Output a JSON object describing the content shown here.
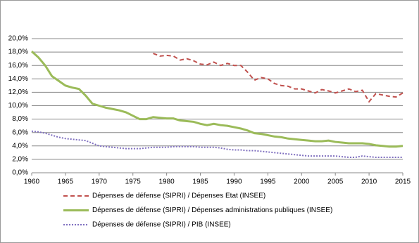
{
  "chart_data": {
    "type": "line",
    "x": [
      1960,
      1961,
      1962,
      1963,
      1964,
      1965,
      1966,
      1967,
      1968,
      1969,
      1970,
      1971,
      1972,
      1973,
      1974,
      1975,
      1976,
      1977,
      1978,
      1979,
      1980,
      1981,
      1982,
      1983,
      1984,
      1985,
      1986,
      1987,
      1988,
      1989,
      1990,
      1991,
      1992,
      1993,
      1994,
      1995,
      1996,
      1997,
      1998,
      1999,
      2000,
      2001,
      2002,
      2003,
      2004,
      2005,
      2006,
      2007,
      2008,
      2009,
      2010,
      2011,
      2012,
      2013,
      2014,
      2015
    ],
    "series": [
      {
        "name": "Dépenses de défense (SIPRI) / Dépenses Etat (INSEE)",
        "color": "#c0504d",
        "dash": "dashed",
        "values": [
          null,
          null,
          null,
          null,
          null,
          null,
          null,
          null,
          null,
          null,
          null,
          null,
          null,
          null,
          null,
          null,
          null,
          null,
          17.8,
          17.4,
          17.5,
          17.4,
          16.8,
          17.0,
          16.7,
          16.2,
          16.1,
          16.5,
          16.0,
          16.3,
          16.0,
          16.0,
          15.0,
          13.8,
          14.2,
          14.0,
          13.3,
          13.0,
          12.9,
          12.5,
          12.5,
          12.2,
          11.9,
          12.4,
          12.2,
          11.9,
          12.2,
          12.5,
          12.1,
          12.3,
          10.6,
          11.8,
          11.6,
          11.4,
          11.3,
          11.9
        ]
      },
      {
        "name": "Dépenses de défense (SIPRI) / Dépenses administrations publiques (INSEE)",
        "color": "#9bbb59",
        "dash": "solid",
        "values": [
          18.1,
          17.2,
          16.0,
          14.4,
          13.7,
          13.0,
          12.7,
          12.5,
          11.5,
          10.3,
          10.0,
          9.7,
          9.5,
          9.3,
          9.0,
          8.5,
          8.0,
          8.0,
          8.3,
          8.2,
          8.1,
          8.1,
          7.8,
          7.7,
          7.6,
          7.3,
          7.1,
          7.3,
          7.1,
          7.0,
          6.8,
          6.6,
          6.3,
          5.9,
          5.8,
          5.6,
          5.4,
          5.3,
          5.1,
          5.0,
          4.9,
          4.8,
          4.7,
          4.7,
          4.8,
          4.6,
          4.5,
          4.4,
          4.4,
          4.4,
          4.3,
          4.1,
          4.0,
          3.9,
          3.9,
          4.0
        ]
      },
      {
        "name": "Dépenses de défense (SIPRI) / PIB (INSEE)",
        "color": "#7f6fbf",
        "dash": "dotted",
        "values": [
          6.2,
          6.1,
          5.9,
          5.6,
          5.3,
          5.1,
          5.0,
          4.9,
          4.8,
          4.4,
          4.0,
          3.9,
          3.8,
          3.7,
          3.6,
          3.6,
          3.6,
          3.7,
          3.8,
          3.8,
          3.8,
          3.9,
          3.9,
          3.9,
          3.9,
          3.8,
          3.8,
          3.8,
          3.7,
          3.5,
          3.4,
          3.4,
          3.3,
          3.3,
          3.2,
          3.1,
          3.0,
          2.9,
          2.8,
          2.7,
          2.6,
          2.5,
          2.5,
          2.5,
          2.5,
          2.5,
          2.4,
          2.3,
          2.3,
          2.5,
          2.4,
          2.3,
          2.3,
          2.3,
          2.3,
          2.3
        ]
      }
    ],
    "xlim": [
      1960,
      2015
    ],
    "xticks": [
      1960,
      1965,
      1970,
      1975,
      1980,
      1985,
      1990,
      1995,
      2000,
      2005,
      2010,
      2015
    ],
    "ylim": [
      0,
      20
    ],
    "yticks": [
      {
        "value": 0,
        "label": "0,0%"
      },
      {
        "value": 2,
        "label": "2,0%"
      },
      {
        "value": 4,
        "label": "4,0%"
      },
      {
        "value": 6,
        "label": "6,0%"
      },
      {
        "value": 8,
        "label": "8,0%"
      },
      {
        "value": 10,
        "label": "10,0%"
      },
      {
        "value": 12,
        "label": "12,0%"
      },
      {
        "value": 14,
        "label": "14,0%"
      },
      {
        "value": 16,
        "label": "16,0%"
      },
      {
        "value": 18,
        "label": "18,0%"
      },
      {
        "value": 20,
        "label": "20,0%"
      }
    ],
    "grid": true,
    "legend": "bottom"
  }
}
